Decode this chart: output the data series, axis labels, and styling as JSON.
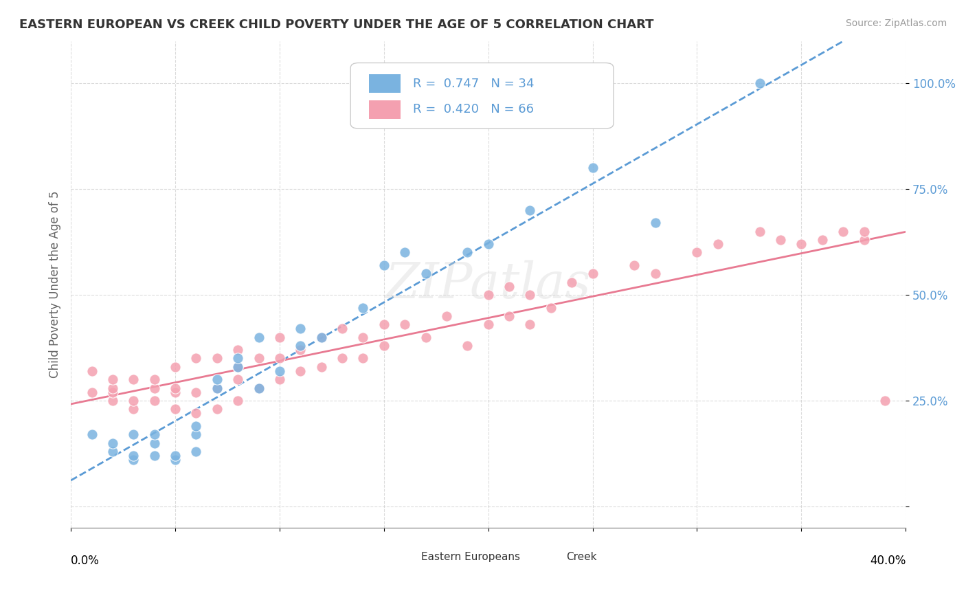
{
  "title": "EASTERN EUROPEAN VS CREEK CHILD POVERTY UNDER THE AGE OF 5 CORRELATION CHART",
  "source": "Source: ZipAtlas.com",
  "ylabel": "Child Poverty Under the Age of 5",
  "yticks": [
    "",
    "25.0%",
    "50.0%",
    "75.0%",
    "100.0%"
  ],
  "ytick_vals": [
    0,
    0.25,
    0.5,
    0.75,
    1.0
  ],
  "xlim": [
    0.0,
    0.4
  ],
  "ylim": [
    -0.05,
    1.1
  ],
  "r_eastern": 0.747,
  "n_eastern": 34,
  "r_creek": 0.42,
  "n_creek": 66,
  "color_eastern": "#7ab3e0",
  "color_creek": "#f4a0b0",
  "color_eastern_line": "#5b9bd5",
  "color_creek_line": "#e87a92",
  "watermark": "ZIPatlas",
  "eastern_x": [
    0.01,
    0.02,
    0.02,
    0.03,
    0.03,
    0.03,
    0.04,
    0.04,
    0.04,
    0.05,
    0.05,
    0.06,
    0.06,
    0.06,
    0.07,
    0.07,
    0.08,
    0.08,
    0.09,
    0.09,
    0.1,
    0.11,
    0.11,
    0.12,
    0.14,
    0.15,
    0.16,
    0.17,
    0.19,
    0.2,
    0.22,
    0.25,
    0.28,
    0.33
  ],
  "eastern_y": [
    0.17,
    0.13,
    0.15,
    0.11,
    0.12,
    0.17,
    0.12,
    0.15,
    0.17,
    0.11,
    0.12,
    0.13,
    0.17,
    0.19,
    0.28,
    0.3,
    0.33,
    0.35,
    0.28,
    0.4,
    0.32,
    0.38,
    0.42,
    0.4,
    0.47,
    0.57,
    0.6,
    0.55,
    0.6,
    0.62,
    0.7,
    0.8,
    0.67,
    1.0
  ],
  "creek_x": [
    0.01,
    0.01,
    0.02,
    0.02,
    0.02,
    0.02,
    0.03,
    0.03,
    0.03,
    0.04,
    0.04,
    0.04,
    0.05,
    0.05,
    0.05,
    0.05,
    0.06,
    0.06,
    0.06,
    0.07,
    0.07,
    0.07,
    0.08,
    0.08,
    0.08,
    0.08,
    0.09,
    0.09,
    0.1,
    0.1,
    0.1,
    0.11,
    0.11,
    0.12,
    0.12,
    0.13,
    0.13,
    0.14,
    0.14,
    0.15,
    0.15,
    0.16,
    0.17,
    0.18,
    0.19,
    0.2,
    0.2,
    0.21,
    0.21,
    0.22,
    0.22,
    0.23,
    0.24,
    0.25,
    0.27,
    0.28,
    0.3,
    0.31,
    0.33,
    0.34,
    0.35,
    0.36,
    0.37,
    0.38,
    0.38,
    0.39
  ],
  "creek_y": [
    0.27,
    0.32,
    0.25,
    0.27,
    0.28,
    0.3,
    0.23,
    0.25,
    0.3,
    0.25,
    0.28,
    0.3,
    0.23,
    0.27,
    0.28,
    0.33,
    0.22,
    0.27,
    0.35,
    0.23,
    0.28,
    0.35,
    0.25,
    0.3,
    0.33,
    0.37,
    0.28,
    0.35,
    0.3,
    0.35,
    0.4,
    0.32,
    0.37,
    0.33,
    0.4,
    0.35,
    0.42,
    0.35,
    0.4,
    0.38,
    0.43,
    0.43,
    0.4,
    0.45,
    0.38,
    0.43,
    0.5,
    0.45,
    0.52,
    0.43,
    0.5,
    0.47,
    0.53,
    0.55,
    0.57,
    0.55,
    0.6,
    0.62,
    0.65,
    0.63,
    0.62,
    0.63,
    0.65,
    0.63,
    0.65,
    0.25
  ]
}
